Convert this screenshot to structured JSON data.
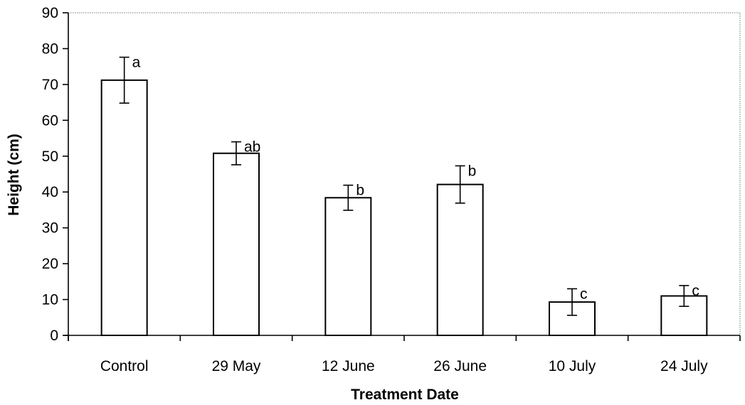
{
  "chart_data": {
    "type": "bar",
    "xlabel": "Treatment Date",
    "ylabel": "Height (cm)",
    "ylim": [
      0,
      90
    ],
    "yticks": [
      0,
      10,
      20,
      30,
      40,
      50,
      60,
      70,
      80,
      90
    ],
    "grid": false,
    "categories": [
      "Control",
      "29 May",
      "12 June",
      "26 June",
      "10 July",
      "24 July"
    ],
    "values": [
      71.2,
      50.8,
      38.4,
      42.1,
      9.3,
      11.0
    ],
    "error": [
      6.4,
      3.2,
      3.5,
      5.2,
      3.7,
      2.9
    ],
    "significance": [
      "a",
      "ab",
      "b",
      "b",
      "c",
      "c"
    ],
    "bar_color": "#ffffff",
    "edge_color": "#000000"
  }
}
